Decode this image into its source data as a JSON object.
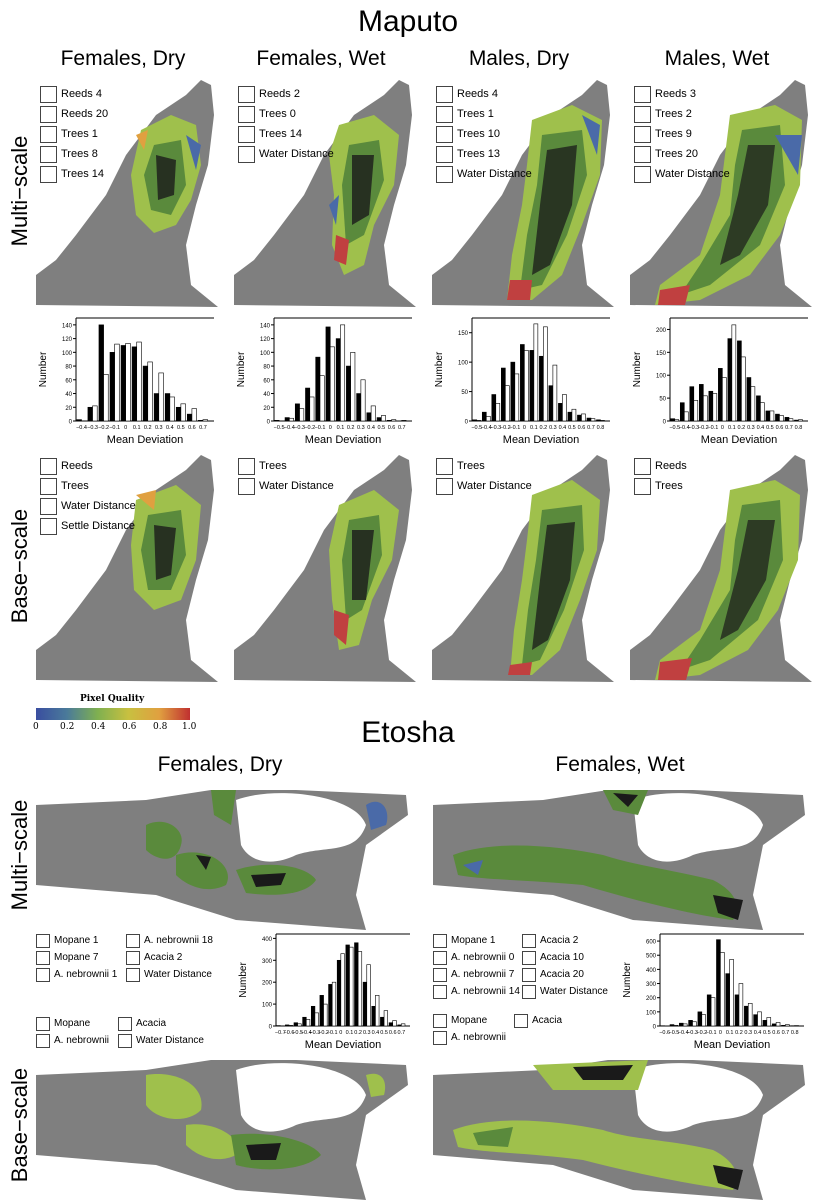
{
  "figure": {
    "maputo_title": "Maputo",
    "etosha_title": "Etosha",
    "row_labels": {
      "multi": "Multi−scale",
      "base": "Base−scale"
    },
    "maputo_columns": [
      "Females, Dry",
      "Females, Wet",
      "Males, Dry",
      "Males, Wet"
    ],
    "etosha_columns": [
      "Females, Dry",
      "Females, Wet"
    ],
    "maputo_multi_legends": [
      [
        "Reeds 4",
        "Reeds 20",
        "Trees 1",
        "Trees 8",
        "Trees 14"
      ],
      [
        "Reeds 2",
        "Trees 0",
        "Trees 14",
        "Water Distance"
      ],
      [
        "Reeds 4",
        "Trees 1",
        "Trees 10",
        "Trees 13",
        "Water Distance"
      ],
      [
        "Reeds 3",
        "Trees 2",
        "Trees 9",
        "Trees 20",
        "Water Distance"
      ]
    ],
    "maputo_base_legends": [
      [
        "Reeds",
        "Trees",
        "Water Distance",
        "Settle Distance"
      ],
      [
        "Trees",
        "Water Distance"
      ],
      [
        "Trees",
        "Water Distance"
      ],
      [
        "Reeds",
        "Trees"
      ]
    ],
    "etosha_multi_legends": [
      [
        "Mopane 1",
        "Mopane 7",
        "A. nebrownii 1",
        "A. nebrownii 18",
        "Acacia 2",
        "Water Distance"
      ],
      [
        "Mopane 1",
        "A. nebrownii 0",
        "A. nebrownii 7",
        "A. nebrownii 14",
        "Acacia 2",
        "Acacia 10",
        "Acacia 20",
        "Water Distance"
      ]
    ],
    "etosha_base_legends": [
      [
        "Mopane",
        "A. nebrownii",
        "Acacia",
        "Water Distance"
      ],
      [
        "Mopane",
        "A. nebrownii",
        "Acacia"
      ]
    ],
    "colorbar": {
      "title": "Pixel Quality",
      "ticks": [
        "0",
        "0.2",
        "0.4",
        "0.6",
        "0.8",
        "1.0"
      ]
    }
  },
  "chart_data": [
    {
      "type": "bar",
      "title": "Maputo Females Dry",
      "xlabel": "Mean Deviation",
      "ylabel": "Number",
      "categories": [
        "-0.4",
        "-0.3",
        "-0.2",
        "-0.1",
        "0",
        "0.1",
        "0.2",
        "0.3",
        "0.4",
        "0.5",
        "0.6",
        "0.7"
      ],
      "ylim": [
        0,
        150
      ],
      "yticks": [
        0,
        20,
        40,
        60,
        80,
        100,
        120,
        140
      ],
      "series": [
        {
          "fill": "black",
          "values": [
            2,
            20,
            140,
            100,
            110,
            108,
            80,
            40,
            40,
            20,
            10,
            1
          ]
        },
        {
          "fill": "white",
          "values": [
            0,
            22,
            68,
            112,
            113,
            115,
            86,
            70,
            35,
            25,
            18,
            2
          ]
        }
      ]
    },
    {
      "type": "bar",
      "title": "Maputo Females Wet",
      "xlabel": "Mean Deviation",
      "ylabel": "Number",
      "categories": [
        "-0.5",
        "-0.4",
        "-0.3",
        "-0.2",
        "-0.1",
        "0",
        "0.1",
        "0.2",
        "0.3",
        "0.4",
        "0.5",
        "0.6",
        "0.7"
      ],
      "ylim": [
        0,
        150
      ],
      "yticks": [
        0,
        20,
        40,
        60,
        80,
        100,
        120,
        140
      ],
      "series": [
        {
          "fill": "black",
          "values": [
            1,
            5,
            25,
            48,
            93,
            137,
            120,
            80,
            40,
            12,
            5,
            1,
            0
          ]
        },
        {
          "fill": "white",
          "values": [
            0,
            4,
            18,
            35,
            66,
            108,
            140,
            100,
            60,
            22,
            8,
            2,
            1
          ]
        }
      ]
    },
    {
      "type": "bar",
      "title": "Maputo Males Dry",
      "xlabel": "Mean Deviation",
      "ylabel": "Number",
      "categories": [
        "-0.5",
        "-0.4",
        "-0.3",
        "-0.2",
        "-0.1",
        "0",
        "0.1",
        "0.2",
        "0.3",
        "0.4",
        "0.5",
        "0.6",
        "0.7",
        "0.8"
      ],
      "ylim": [
        0,
        175
      ],
      "yticks": [
        0,
        50,
        100,
        150
      ],
      "series": [
        {
          "fill": "black",
          "values": [
            2,
            15,
            45,
            90,
            100,
            130,
            120,
            110,
            60,
            30,
            15,
            10,
            5,
            2
          ]
        },
        {
          "fill": "white",
          "values": [
            1,
            8,
            30,
            60,
            80,
            120,
            165,
            160,
            95,
            45,
            20,
            12,
            4,
            1
          ]
        }
      ]
    },
    {
      "type": "bar",
      "title": "Maputo Males Wet",
      "xlabel": "Mean Deviation",
      "ylabel": "Number",
      "categories": [
        "-0.5",
        "-0.4",
        "-0.3",
        "-0.2",
        "-0.1",
        "0",
        "0.1",
        "0.2",
        "0.3",
        "0.4",
        "0.5",
        "0.6",
        "0.7",
        "0.8"
      ],
      "ylim": [
        0,
        225
      ],
      "yticks": [
        0,
        50,
        100,
        150,
        200
      ],
      "series": [
        {
          "fill": "black",
          "values": [
            5,
            40,
            75,
            80,
            65,
            115,
            180,
            175,
            95,
            55,
            22,
            15,
            8,
            2
          ]
        },
        {
          "fill": "white",
          "values": [
            3,
            20,
            45,
            55,
            60,
            95,
            210,
            140,
            75,
            40,
            22,
            12,
            5,
            3
          ]
        }
      ]
    },
    {
      "type": "bar",
      "title": "Etosha Females Dry",
      "xlabel": "Mean Deviation",
      "ylabel": "Number",
      "categories": [
        "-0.7",
        "-0.6",
        "-0.5",
        "-0.4",
        "-0.3",
        "-0.2",
        "-0.1",
        "0",
        "0.1",
        "0.2",
        "0.3",
        "0.4",
        "0.5",
        "0.6",
        "0.7"
      ],
      "ylim": [
        0,
        420
      ],
      "yticks": [
        0,
        100,
        200,
        300,
        400
      ],
      "series": [
        {
          "fill": "black",
          "values": [
            2,
            5,
            15,
            40,
            90,
            140,
            190,
            300,
            370,
            380,
            200,
            90,
            40,
            15,
            5
          ]
        },
        {
          "fill": "white",
          "values": [
            1,
            3,
            10,
            30,
            60,
            100,
            200,
            330,
            360,
            340,
            280,
            140,
            70,
            25,
            10
          ]
        }
      ]
    },
    {
      "type": "bar",
      "title": "Etosha Females Wet",
      "xlabel": "Mean Deviation",
      "ylabel": "Number",
      "categories": [
        "-0.6",
        "-0.5",
        "-0.4",
        "-0.3",
        "-0.2",
        "-0.1",
        "0",
        "0.1",
        "0.2",
        "0.3",
        "0.4",
        "0.5",
        "0.6",
        "0.7",
        "0.8"
      ],
      "ylim": [
        0,
        650
      ],
      "yticks": [
        0,
        100,
        200,
        300,
        400,
        500,
        600
      ],
      "series": [
        {
          "fill": "black",
          "values": [
            2,
            10,
            20,
            40,
            100,
            220,
            610,
            370,
            220,
            140,
            80,
            40,
            15,
            5,
            2
          ]
        },
        {
          "fill": "white",
          "values": [
            1,
            5,
            15,
            30,
            80,
            200,
            520,
            470,
            300,
            160,
            100,
            60,
            25,
            10,
            3
          ]
        }
      ]
    }
  ]
}
